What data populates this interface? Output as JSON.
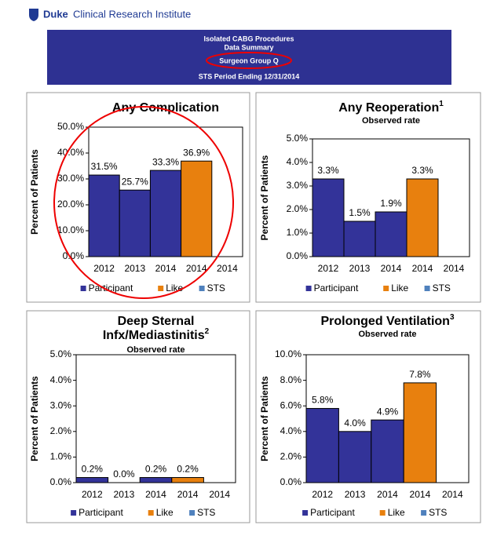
{
  "header": {
    "brand": "Duke",
    "institute": "Clinical Research Institute",
    "lines": [
      "Isolated CABG Procedures",
      "Data Summary",
      "Surgeon Group Q",
      "STS Period Ending 12/31/2014"
    ]
  },
  "chart_data": [
    {
      "type": "bar",
      "title": [
        "Any Complication"
      ],
      "y_label": "Percent of Patients",
      "categories": [
        "2012",
        "2013",
        "2014",
        "2014",
        "2014"
      ],
      "series": [
        {
          "name": "Participant",
          "color": "#333399",
          "values": [
            31.5,
            25.7,
            33.3,
            null,
            null
          ],
          "value_labels": [
            "31.5%",
            "25.7%",
            "33.3%",
            null,
            null
          ]
        },
        {
          "name": "Like",
          "color": "#e8800e",
          "values": [
            null,
            null,
            null,
            36.9,
            null
          ],
          "value_labels": [
            null,
            null,
            null,
            "36.9%",
            null
          ]
        },
        {
          "name": "STS",
          "color": "#4f81bd",
          "values": [
            null,
            null,
            null,
            null,
            null
          ]
        }
      ],
      "ylim": [
        0,
        50
      ],
      "yticks": [
        {
          "value": 0,
          "label": "0.0%"
        },
        {
          "value": 10,
          "label": "10.0%"
        },
        {
          "value": 20,
          "label": "20.0%"
        },
        {
          "value": 30,
          "label": "30.0%"
        },
        {
          "value": 40,
          "label": "40.0%"
        },
        {
          "value": 50,
          "label": "50.0%"
        }
      ]
    },
    {
      "type": "bar",
      "title": [
        "Any Reoperation"
      ],
      "title_superscript": "1",
      "subtitle": "Observed rate",
      "y_label": "Percent of Patients",
      "categories": [
        "2012",
        "2013",
        "2014",
        "2014",
        "2014"
      ],
      "series": [
        {
          "name": "Participant",
          "color": "#333399",
          "values": [
            3.3,
            1.5,
            1.9,
            null,
            null
          ],
          "value_labels": [
            "3.3%",
            "1.5%",
            "1.9%",
            null,
            null
          ]
        },
        {
          "name": "Like",
          "color": "#e8800e",
          "values": [
            null,
            null,
            null,
            3.3,
            null
          ],
          "value_labels": [
            null,
            null,
            null,
            "3.3%",
            null
          ]
        },
        {
          "name": "STS",
          "color": "#4f81bd",
          "values": [
            null,
            null,
            null,
            null,
            null
          ]
        }
      ],
      "ylim": [
        0,
        5
      ],
      "yticks": [
        {
          "value": 0,
          "label": "0.0%"
        },
        {
          "value": 1,
          "label": "1.0%"
        },
        {
          "value": 2,
          "label": "2.0%"
        },
        {
          "value": 3,
          "label": "3.0%"
        },
        {
          "value": 4,
          "label": "4.0%"
        },
        {
          "value": 5,
          "label": "5.0%"
        }
      ]
    },
    {
      "type": "bar",
      "title": [
        "Deep Sternal",
        "Infx/Mediastinitis"
      ],
      "title_superscript": "2",
      "subtitle": "Observed rate",
      "y_label": "Percent of Patients",
      "categories": [
        "2012",
        "2013",
        "2014",
        "2014",
        "2014"
      ],
      "series": [
        {
          "name": "Participant",
          "color": "#333399",
          "values": [
            0.2,
            0.0,
            0.2,
            null,
            null
          ],
          "value_labels": [
            "0.2%",
            "0.0%",
            "0.2%",
            null,
            null
          ]
        },
        {
          "name": "Like",
          "color": "#e8800e",
          "values": [
            null,
            null,
            null,
            0.2,
            null
          ],
          "value_labels": [
            null,
            null,
            null,
            "0.2%",
            null
          ]
        },
        {
          "name": "STS",
          "color": "#4f81bd",
          "values": [
            null,
            null,
            null,
            null,
            null
          ]
        }
      ],
      "ylim": [
        0,
        5
      ],
      "yticks": [
        {
          "value": 0,
          "label": "0.0%"
        },
        {
          "value": 1,
          "label": "1.0%"
        },
        {
          "value": 2,
          "label": "2.0%"
        },
        {
          "value": 3,
          "label": "3.0%"
        },
        {
          "value": 4,
          "label": "4.0%"
        },
        {
          "value": 5,
          "label": "5.0%"
        }
      ]
    },
    {
      "type": "bar",
      "title": [
        "Prolonged Ventilation"
      ],
      "title_superscript": "3",
      "subtitle": "Observed rate",
      "y_label": "Percent of Patients",
      "categories": [
        "2012",
        "2013",
        "2014",
        "2014",
        "2014"
      ],
      "series": [
        {
          "name": "Participant",
          "color": "#333399",
          "values": [
            5.8,
            4.0,
            4.9,
            null,
            null
          ],
          "value_labels": [
            "5.8%",
            "4.0%",
            "4.9%",
            null,
            null
          ]
        },
        {
          "name": "Like",
          "color": "#e8800e",
          "values": [
            null,
            null,
            null,
            7.8,
            null
          ],
          "value_labels": [
            null,
            null,
            null,
            "7.8%",
            null
          ]
        },
        {
          "name": "STS",
          "color": "#4f81bd",
          "values": [
            null,
            null,
            null,
            null,
            null
          ]
        }
      ],
      "ylim": [
        0,
        10
      ],
      "yticks": [
        {
          "value": 0,
          "label": "0.0%"
        },
        {
          "value": 2,
          "label": "2.0%"
        },
        {
          "value": 4,
          "label": "4.0%"
        },
        {
          "value": 6,
          "label": "6.0%"
        },
        {
          "value": 8,
          "label": "8.0%"
        },
        {
          "value": 10,
          "label": "10.0%"
        }
      ]
    }
  ]
}
